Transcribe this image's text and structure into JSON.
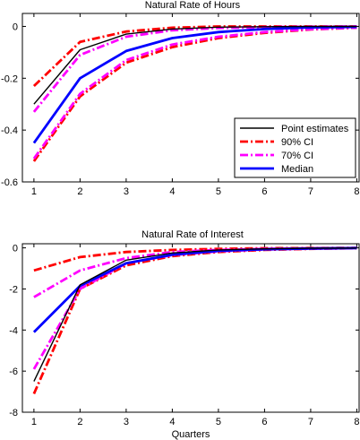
{
  "chart_data": [
    {
      "type": "line",
      "title": "Natural Rate of Hours",
      "xlabel": "",
      "ylabel": "",
      "xlim": [
        0.75,
        8.05
      ],
      "ylim": [
        -0.6,
        0.05
      ],
      "xticks": [
        1,
        2,
        3,
        4,
        5,
        6,
        7,
        8
      ],
      "yticks": [
        0,
        -0.2,
        -0.4,
        -0.6
      ],
      "ytick_labels": [
        "0",
        "-0.2",
        "-0.4",
        "-0.6"
      ],
      "legend": {
        "placement": "lower-right",
        "entries": [
          "Point estimates",
          "90% CI",
          "70% CI",
          "Median"
        ]
      },
      "x": [
        1,
        2,
        3,
        4,
        5,
        6,
        7,
        8
      ],
      "series": [
        {
          "name": "90% CI",
          "style": "dashdot",
          "color": "#ff0000",
          "width": 2.8,
          "values": [
            -0.23,
            -0.06,
            -0.02,
            -0.005,
            0.0,
            0.0,
            0.0,
            0.0
          ]
        },
        {
          "name": "90% CI",
          "style": "dashdot",
          "color": "#ff0000",
          "width": 2.8,
          "values": [
            -0.52,
            -0.27,
            -0.14,
            -0.08,
            -0.045,
            -0.025,
            -0.012,
            -0.005
          ]
        },
        {
          "name": "70% CI",
          "style": "dashdot",
          "color": "#ff00ff",
          "width": 2.8,
          "values": [
            -0.33,
            -0.11,
            -0.04,
            -0.015,
            -0.006,
            -0.003,
            -0.001,
            0.0
          ]
        },
        {
          "name": "70% CI",
          "style": "dashdot",
          "color": "#ff00ff",
          "width": 2.8,
          "values": [
            -0.51,
            -0.26,
            -0.13,
            -0.07,
            -0.04,
            -0.022,
            -0.011,
            -0.005
          ]
        },
        {
          "name": "Median",
          "style": "solid",
          "color": "#0000ff",
          "width": 2.8,
          "values": [
            -0.45,
            -0.2,
            -0.095,
            -0.045,
            -0.022,
            -0.01,
            -0.004,
            -0.002
          ]
        },
        {
          "name": "Point estimates",
          "style": "solid",
          "color": "#000000",
          "width": 1.4,
          "values": [
            -0.3,
            -0.09,
            -0.03,
            -0.01,
            -0.003,
            -0.001,
            0.0,
            0.0
          ]
        }
      ]
    },
    {
      "type": "line",
      "title": "Natural Rate of Interest",
      "xlabel": "Quarters",
      "ylabel": "",
      "xlim": [
        0.75,
        8.05
      ],
      "ylim": [
        -8,
        0.2
      ],
      "xticks": [
        1,
        2,
        3,
        4,
        5,
        6,
        7,
        8
      ],
      "yticks": [
        0,
        -2,
        -4,
        -6,
        -8
      ],
      "ytick_labels": [
        "0",
        "-2",
        "-4",
        "-6",
        "-8"
      ],
      "x": [
        1,
        2,
        3,
        4,
        5,
        6,
        7,
        8
      ],
      "series": [
        {
          "name": "90% CI",
          "style": "dashdot",
          "color": "#ff0000",
          "width": 2.8,
          "values": [
            -1.1,
            -0.45,
            -0.2,
            -0.1,
            -0.05,
            -0.02,
            -0.01,
            0.0
          ]
        },
        {
          "name": "90% CI",
          "style": "dashdot",
          "color": "#ff0000",
          "width": 2.8,
          "values": [
            -7.1,
            -2.0,
            -0.85,
            -0.4,
            -0.2,
            -0.1,
            -0.05,
            -0.02
          ]
        },
        {
          "name": "70% CI",
          "style": "dashdot",
          "color": "#ff00ff",
          "width": 2.8,
          "values": [
            -2.4,
            -1.1,
            -0.5,
            -0.2,
            -0.1,
            -0.05,
            -0.02,
            -0.01
          ]
        },
        {
          "name": "70% CI",
          "style": "dashdot",
          "color": "#ff00ff",
          "width": 2.8,
          "values": [
            -5.9,
            -2.0,
            -0.75,
            -0.35,
            -0.17,
            -0.08,
            -0.04,
            -0.02
          ]
        },
        {
          "name": "Median",
          "style": "solid",
          "color": "#0000ff",
          "width": 2.8,
          "values": [
            -4.1,
            -1.85,
            -0.75,
            -0.33,
            -0.15,
            -0.07,
            -0.03,
            -0.01
          ]
        },
        {
          "name": "Point estimates",
          "style": "solid",
          "color": "#000000",
          "width": 1.4,
          "values": [
            -6.5,
            -1.8,
            -0.6,
            -0.25,
            -0.1,
            -0.05,
            -0.02,
            -0.01
          ]
        }
      ]
    }
  ]
}
